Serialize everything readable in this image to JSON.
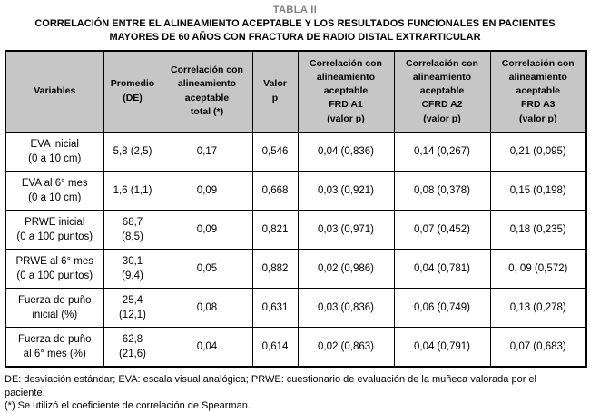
{
  "title": {
    "label": "TABLA II",
    "caption": "CORRELACIÓN ENTRE EL ALINEAMIENTO ACEPTABLE Y LOS RESULTADOS FUNCIONALES EN PACIENTES\nMAYORES DE 60 AÑOS CON FRACTURA DE RADIO DISTAL EXTRARTICULAR"
  },
  "table": {
    "headers": [
      "Variables",
      "Promedio\n(DE)",
      "Correlación con\nalineamiento\naceptable\ntotal (*)",
      "Valor\np",
      "Correlación con\nalineamiento\naceptable\nFRD A1\n(valor p)",
      "Correlación con\nalineamiento\naceptable\nCFRD A2\n(valor p)",
      "Correlación con\nalineamiento\naceptable\nFRD A3\n(valor p)"
    ],
    "rows": [
      [
        "EVA inicial\n(0 a 10 cm)",
        "5,8 (2,5)",
        "0,17",
        "0,546",
        "0,04 (0,836)",
        "0,14 (0,267)",
        "0,21 (0,095)"
      ],
      [
        "EVA al 6° mes\n(0 a 10 cm)",
        "1,6 (1,1)",
        "0,09",
        "0,668",
        "0,03 (0,921)",
        "0,08 (0,378)",
        "0,15 (0,198)"
      ],
      [
        "PRWE inicial\n(0 a 100 puntos)",
        "68,7\n(8,5)",
        "0,09",
        "0,821",
        "0,03 (0,971)",
        "0,07 (0,452)",
        "0,18 (0,235)"
      ],
      [
        "PRWE al 6° mes\n(0 a 100 puntos)",
        "30,1\n(9,4)",
        "0,05",
        "0,882",
        "0,02 (0,986)",
        "0,04 (0,781)",
        "0, 09 (0,572)"
      ],
      [
        "Fuerza de puño\ninicial (%)",
        "25,4\n(12,1)",
        "0,08",
        "0,631",
        "0,03 (0,836)",
        "0,06 (0,749)",
        "0,13 (0,278)"
      ],
      [
        "Fuerza de puño\nal 6° mes (%)",
        "62,8\n(21,6)",
        "0,04",
        "0,614",
        "0,02 (0,863)",
        "0,04 (0,791)",
        "0,07 (0,683)"
      ]
    ]
  },
  "footnotes": [
    "DE: desviación estándar; EVA: escala visual analógica; PRWE: cuestionario de evaluación de la muñeca valorada por el\npaciente.",
    "(*) Se utilizó el coeficiente de correlación de Spearman."
  ],
  "colors": {
    "header_bg": "#c6c6c6",
    "border": "#000000",
    "table_label_gray": "#808080"
  }
}
